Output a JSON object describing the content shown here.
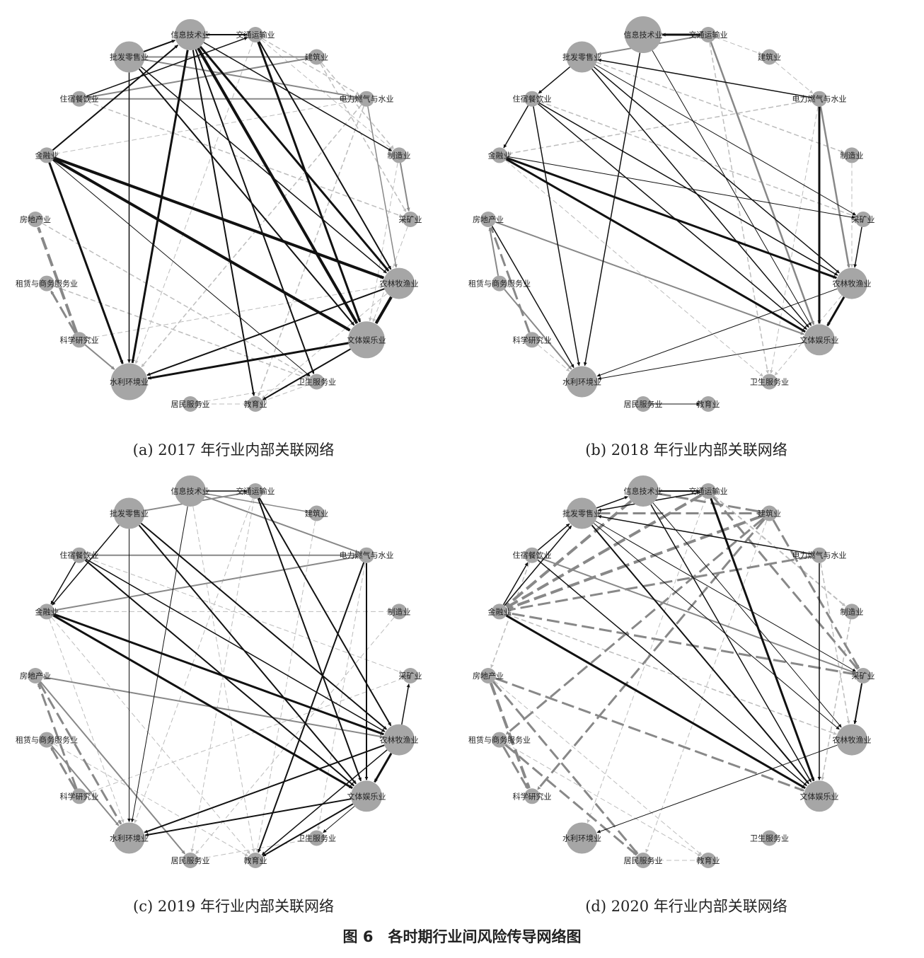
{
  "figure": {
    "title": "图 6　各时期行业间风险传导网络图",
    "node_color": "#a6a6a6",
    "edge_colors": {
      "strong": "#111111",
      "medium": "#888888",
      "light": "#bdbdbd"
    }
  },
  "nodes": [
    "交通运输业",
    "建筑业",
    "电力燃气与水业",
    "制造业",
    "采矿业",
    "农林牧渔业",
    "文体娱乐业",
    "卫生服务业",
    "教育业",
    "居民服务业",
    "水利环境业",
    "科学研究业",
    "租赁与商务服务业",
    "房地产业",
    "金融业",
    "住宿餐饮业",
    "批发零售业",
    "信息技术业"
  ],
  "panels": [
    {
      "id": "a",
      "caption": "(a)  2017 年行业内部关联网络",
      "node_sizes": [
        1,
        1,
        1,
        1,
        1,
        2,
        3,
        1,
        1,
        1,
        3,
        1,
        1,
        1,
        1,
        1,
        2,
        2
      ],
      "edges": [
        [
          17,
          5,
          "strong",
          3
        ],
        [
          17,
          6,
          "strong",
          4
        ],
        [
          17,
          10,
          "strong",
          3
        ],
        [
          17,
          7,
          "strong",
          2
        ],
        [
          17,
          8,
          "strong",
          2
        ],
        [
          14,
          5,
          "strong",
          4
        ],
        [
          14,
          6,
          "strong",
          4
        ],
        [
          14,
          10,
          "strong",
          3
        ],
        [
          16,
          6,
          "strong",
          2
        ],
        [
          16,
          5,
          "strong",
          1.5
        ],
        [
          0,
          6,
          "strong",
          3
        ],
        [
          0,
          5,
          "strong",
          2
        ],
        [
          6,
          10,
          "strong",
          3
        ],
        [
          5,
          10,
          "strong",
          2
        ],
        [
          6,
          8,
          "strong",
          2
        ],
        [
          17,
          3,
          "strong",
          1.5
        ],
        [
          16,
          17,
          "strong",
          2
        ],
        [
          14,
          17,
          "strong",
          2
        ],
        [
          15,
          0,
          "strong",
          1.5
        ],
        [
          5,
          6,
          "strong",
          4
        ],
        [
          17,
          0,
          "strong",
          2
        ],
        [
          16,
          10,
          "strong",
          1.5
        ],
        [
          14,
          7,
          "strong",
          1
        ],
        [
          0,
          10,
          "light",
          1
        ],
        [
          15,
          4,
          "light",
          1.5
        ],
        [
          13,
          7,
          "light",
          1.5
        ],
        [
          12,
          7,
          "light",
          1.5
        ],
        [
          11,
          13,
          "medium",
          4
        ],
        [
          11,
          12,
          "medium",
          3
        ],
        [
          11,
          10,
          "medium",
          2
        ],
        [
          2,
          5,
          "medium",
          1.5
        ],
        [
          2,
          8,
          "light",
          1.5
        ],
        [
          2,
          10,
          "light",
          1.5
        ],
        [
          3,
          4,
          "medium",
          2
        ],
        [
          1,
          3,
          "light",
          1.5
        ],
        [
          1,
          4,
          "light",
          1.5
        ],
        [
          0,
          2,
          "light",
          1.5
        ],
        [
          0,
          3,
          "light",
          1
        ],
        [
          9,
          7,
          "light",
          1
        ],
        [
          7,
          8,
          "light",
          1
        ],
        [
          8,
          9,
          "light",
          1
        ],
        [
          16,
          2,
          "medium",
          2
        ],
        [
          15,
          1,
          "medium",
          2
        ],
        [
          16,
          1,
          "medium",
          2
        ],
        [
          3,
          6,
          "light",
          1
        ],
        [
          4,
          6,
          "light",
          1
        ],
        [
          2,
          15,
          "medium",
          2
        ],
        [
          5,
          8,
          "light",
          1
        ],
        [
          0,
          17,
          "light",
          1.5
        ],
        [
          2,
          14,
          "light",
          1
        ],
        [
          11,
          5,
          "light",
          1
        ]
      ]
    },
    {
      "id": "b",
      "caption": "(b)  2018 年行业内部关联网络",
      "node_sizes": [
        1,
        1,
        1,
        1,
        1,
        2,
        2,
        1,
        1,
        1,
        2,
        1,
        1,
        1,
        1,
        1,
        2,
        3
      ],
      "edges": [
        [
          0,
          17,
          "strong",
          3
        ],
        [
          2,
          16,
          "strong",
          1.5
        ],
        [
          2,
          6,
          "strong",
          3
        ],
        [
          14,
          5,
          "strong",
          3
        ],
        [
          14,
          6,
          "strong",
          3
        ],
        [
          15,
          6,
          "strong",
          1.5
        ],
        [
          15,
          5,
          "strong",
          1.5
        ],
        [
          15,
          10,
          "strong",
          1.5
        ],
        [
          16,
          6,
          "strong",
          1.5
        ],
        [
          16,
          5,
          "strong",
          1.5
        ],
        [
          17,
          10,
          "strong",
          1.5
        ],
        [
          6,
          10,
          "strong",
          1
        ],
        [
          5,
          10,
          "strong",
          1
        ],
        [
          5,
          6,
          "strong",
          3
        ],
        [
          4,
          5,
          "strong",
          1.5
        ],
        [
          9,
          8,
          "strong",
          1
        ],
        [
          13,
          10,
          "strong",
          1.5
        ],
        [
          16,
          15,
          "strong",
          1.5
        ],
        [
          15,
          14,
          "strong",
          1.5
        ],
        [
          17,
          6,
          "strong",
          1
        ],
        [
          16,
          4,
          "strong",
          1
        ],
        [
          14,
          4,
          "strong",
          1
        ],
        [
          2,
          5,
          "medium",
          2.5
        ],
        [
          0,
          6,
          "medium",
          2.5
        ],
        [
          12,
          10,
          "medium",
          2
        ],
        [
          11,
          13,
          "medium",
          3
        ],
        [
          12,
          13,
          "medium",
          2
        ],
        [
          13,
          6,
          "medium",
          2
        ],
        [
          0,
          16,
          "medium",
          2
        ],
        [
          16,
          3,
          "light",
          1.5
        ],
        [
          15,
          4,
          "light",
          1.5
        ],
        [
          2,
          14,
          "light",
          1.5
        ],
        [
          0,
          7,
          "light",
          1.5
        ],
        [
          1,
          2,
          "light",
          1
        ],
        [
          0,
          1,
          "light",
          1
        ],
        [
          3,
          5,
          "light",
          1
        ],
        [
          2,
          7,
          "light",
          1
        ],
        [
          16,
          0,
          "light",
          1.5
        ],
        [
          11,
          10,
          "light",
          1
        ],
        [
          14,
          7,
          "light",
          1
        ],
        [
          5,
          7,
          "light",
          1
        ]
      ]
    },
    {
      "id": "c",
      "caption": "(c)  2019 年行业内部关联网络",
      "node_sizes": [
        1,
        1,
        1,
        1,
        1,
        2,
        2,
        1,
        1,
        1,
        2,
        1,
        1,
        1,
        1,
        1,
        2,
        2
      ],
      "edges": [
        [
          0,
          5,
          "strong",
          2
        ],
        [
          0,
          6,
          "strong",
          2
        ],
        [
          2,
          6,
          "strong",
          2
        ],
        [
          2,
          8,
          "strong",
          2
        ],
        [
          14,
          5,
          "strong",
          3
        ],
        [
          14,
          6,
          "strong",
          3
        ],
        [
          16,
          6,
          "strong",
          2
        ],
        [
          16,
          5,
          "strong",
          2
        ],
        [
          15,
          6,
          "strong",
          2
        ],
        [
          15,
          5,
          "strong",
          1.5
        ],
        [
          17,
          10,
          "strong",
          1
        ],
        [
          16,
          10,
          "strong",
          1
        ],
        [
          6,
          10,
          "strong",
          2
        ],
        [
          5,
          10,
          "strong",
          2
        ],
        [
          6,
          8,
          "strong",
          2
        ],
        [
          5,
          8,
          "strong",
          1.5
        ],
        [
          5,
          4,
          "strong",
          1.5
        ],
        [
          5,
          6,
          "strong",
          3
        ],
        [
          17,
          0,
          "strong",
          1.5
        ],
        [
          16,
          14,
          "strong",
          1.5
        ],
        [
          15,
          14,
          "strong",
          1.5
        ],
        [
          6,
          7,
          "strong",
          1
        ],
        [
          13,
          10,
          "medium",
          3
        ],
        [
          12,
          10,
          "medium",
          2
        ],
        [
          11,
          13,
          "medium",
          3
        ],
        [
          11,
          12,
          "medium",
          3
        ],
        [
          13,
          9,
          "medium",
          2
        ],
        [
          14,
          2,
          "medium",
          2
        ],
        [
          15,
          2,
          "medium",
          2
        ],
        [
          16,
          0,
          "medium",
          2
        ],
        [
          17,
          2,
          "medium",
          2
        ],
        [
          17,
          1,
          "medium",
          1.5
        ],
        [
          14,
          10,
          "light",
          1
        ],
        [
          15,
          4,
          "light",
          1
        ],
        [
          0,
          10,
          "light",
          1
        ],
        [
          1,
          8,
          "light",
          1
        ],
        [
          2,
          7,
          "light",
          1
        ],
        [
          3,
          9,
          "light",
          1
        ],
        [
          3,
          14,
          "light",
          1
        ],
        [
          4,
          11,
          "light",
          1
        ],
        [
          12,
          8,
          "light",
          1
        ],
        [
          13,
          5,
          "medium",
          2
        ],
        [
          9,
          7,
          "light",
          1
        ],
        [
          0,
          9,
          "light",
          1
        ],
        [
          17,
          8,
          "light",
          1
        ],
        [
          14,
          8,
          "light",
          1
        ]
      ]
    },
    {
      "id": "d",
      "caption": "(d)  2020 年行业内部关联网络",
      "node_sizes": [
        1,
        1,
        1,
        1,
        1,
        2,
        2,
        1,
        1,
        1,
        2,
        1,
        1,
        1,
        1,
        1,
        2,
        2
      ],
      "edges": [
        [
          14,
          6,
          "strong",
          3
        ],
        [
          0,
          6,
          "strong",
          3
        ],
        [
          16,
          6,
          "strong",
          2
        ],
        [
          15,
          6,
          "strong",
          1.5
        ],
        [
          17,
          6,
          "strong",
          1.5
        ],
        [
          16,
          4,
          "strong",
          1
        ],
        [
          16,
          5,
          "strong",
          1
        ],
        [
          17,
          5,
          "strong",
          1
        ],
        [
          2,
          6,
          "strong",
          1.5
        ],
        [
          2,
          16,
          "strong",
          1.5
        ],
        [
          17,
          0,
          "strong",
          2
        ],
        [
          16,
          17,
          "strong",
          1.5
        ],
        [
          15,
          16,
          "strong",
          1.5
        ],
        [
          14,
          15,
          "strong",
          1.5
        ],
        [
          5,
          10,
          "strong",
          1
        ],
        [
          0,
          16,
          "strong",
          1.5
        ],
        [
          14,
          16,
          "strong",
          1.5
        ],
        [
          4,
          5,
          "strong",
          2
        ],
        [
          1,
          14,
          "medium",
          4
        ],
        [
          0,
          14,
          "medium",
          4
        ],
        [
          17,
          14,
          "medium",
          4
        ],
        [
          0,
          4,
          "medium",
          3
        ],
        [
          1,
          4,
          "medium",
          3
        ],
        [
          4,
          14,
          "medium",
          3
        ],
        [
          2,
          14,
          "medium",
          3
        ],
        [
          1,
          12,
          "medium",
          3
        ],
        [
          1,
          11,
          "medium",
          3
        ],
        [
          13,
          11,
          "medium",
          4
        ],
        [
          12,
          11,
          "medium",
          3
        ],
        [
          13,
          9,
          "medium",
          3
        ],
        [
          12,
          9,
          "medium",
          3
        ],
        [
          13,
          6,
          "medium",
          3
        ],
        [
          15,
          4,
          "medium",
          2
        ],
        [
          14,
          5,
          "light",
          1.5
        ],
        [
          3,
          6,
          "light",
          1.5
        ],
        [
          0,
          3,
          "light",
          2
        ],
        [
          1,
          9,
          "light",
          1
        ],
        [
          13,
          8,
          "light",
          1
        ],
        [
          12,
          8,
          "light",
          1
        ],
        [
          9,
          8,
          "light",
          1
        ],
        [
          0,
          10,
          "light",
          1
        ],
        [
          2,
          5,
          "light",
          1.5
        ],
        [
          15,
          13,
          "light",
          1.5
        ],
        [
          17,
          1,
          "medium",
          3
        ],
        [
          16,
          1,
          "medium",
          3
        ]
      ]
    }
  ]
}
